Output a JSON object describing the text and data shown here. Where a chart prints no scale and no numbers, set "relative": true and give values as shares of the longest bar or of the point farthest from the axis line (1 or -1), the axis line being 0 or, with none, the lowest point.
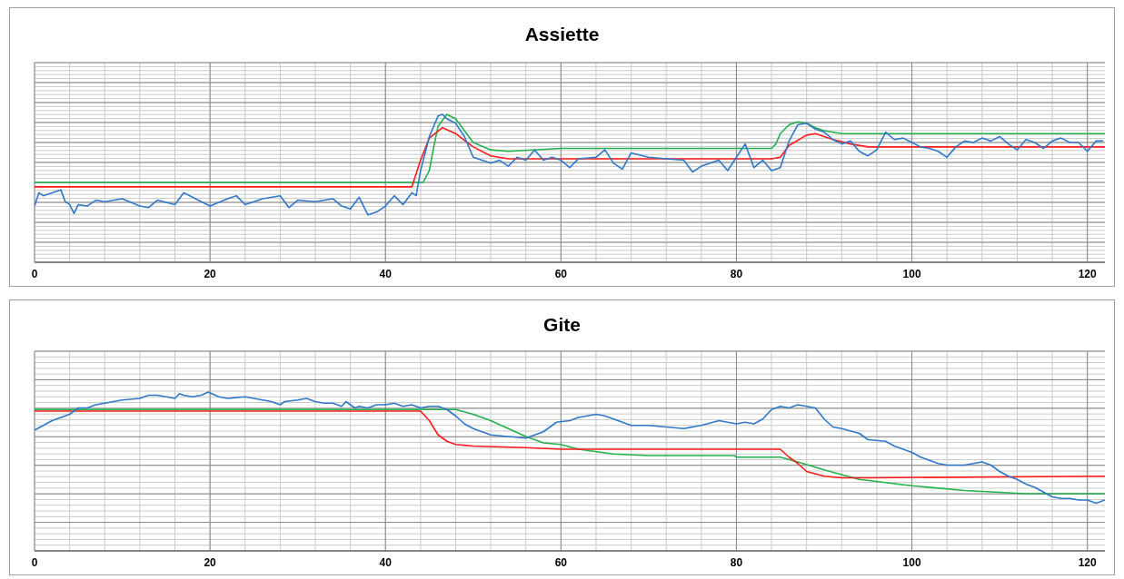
{
  "chart_data": [
    {
      "type": "line",
      "title": "Assiette",
      "relative": true,
      "xlim": [
        0,
        122
      ],
      "xticks": [
        0,
        20,
        40,
        60,
        80,
        100,
        120
      ],
      "grid": true,
      "series": [
        {
          "color": "#22b14c",
          "x": [
            0,
            44.3,
            45,
            45.5,
            46,
            47,
            48,
            49,
            50,
            52,
            54,
            60,
            84,
            84.5,
            85,
            86,
            87,
            88,
            89,
            90,
            92,
            122
          ],
          "values": [
            0.54,
            0.54,
            0.62,
            0.78,
            0.92,
            1.0,
            0.97,
            0.89,
            0.81,
            0.76,
            0.75,
            0.77,
            0.77,
            0.8,
            0.87,
            0.93,
            0.95,
            0.94,
            0.91,
            0.89,
            0.87,
            0.87
          ]
        },
        {
          "color": "#ff1a1a",
          "x": [
            0,
            43,
            44,
            45,
            46.5,
            48,
            50,
            52,
            54,
            60,
            84,
            85,
            86,
            88,
            89,
            91,
            93,
            95,
            122
          ],
          "values": [
            0.51,
            0.51,
            0.69,
            0.84,
            0.91,
            0.87,
            0.78,
            0.72,
            0.7,
            0.7,
            0.7,
            0.71,
            0.79,
            0.86,
            0.87,
            0.83,
            0.8,
            0.78,
            0.78
          ]
        },
        {
          "color": "#2f78c8",
          "x": [
            0,
            0.5,
            1,
            2,
            3,
            3.5,
            4,
            4.5,
            5,
            6,
            7,
            8,
            10,
            12,
            13,
            14,
            16,
            17,
            18,
            19,
            20,
            22,
            23,
            24,
            26,
            28,
            29,
            30,
            32,
            34,
            35,
            36,
            37,
            38,
            39,
            40,
            41,
            42,
            43,
            43.5,
            44,
            45,
            46,
            46.5,
            47,
            48,
            49,
            50,
            51,
            52,
            53,
            54,
            55,
            56,
            57,
            58,
            59,
            60,
            61,
            62,
            64,
            65,
            66,
            67,
            68,
            70,
            72,
            74,
            75,
            76,
            78,
            79,
            80,
            81,
            82,
            83,
            84,
            85,
            86,
            87,
            88,
            89,
            90,
            91,
            92,
            93,
            94,
            95,
            96,
            97,
            98,
            99,
            100,
            101,
            102,
            103,
            104,
            105,
            106,
            107,
            108,
            109,
            110,
            111,
            112,
            113,
            114,
            115,
            116,
            117,
            118,
            119,
            120,
            121,
            121.8
          ],
          "values": [
            0.38,
            0.47,
            0.45,
            0.47,
            0.49,
            0.41,
            0.39,
            0.33,
            0.39,
            0.38,
            0.42,
            0.41,
            0.43,
            0.38,
            0.37,
            0.42,
            0.39,
            0.47,
            0.44,
            0.41,
            0.38,
            0.43,
            0.45,
            0.39,
            0.43,
            0.45,
            0.37,
            0.42,
            0.41,
            0.43,
            0.38,
            0.36,
            0.44,
            0.32,
            0.34,
            0.38,
            0.45,
            0.39,
            0.47,
            0.45,
            0.62,
            0.85,
            0.99,
            1.0,
            0.97,
            0.94,
            0.85,
            0.71,
            0.69,
            0.67,
            0.69,
            0.65,
            0.71,
            0.69,
            0.76,
            0.69,
            0.71,
            0.69,
            0.64,
            0.7,
            0.71,
            0.76,
            0.67,
            0.63,
            0.74,
            0.71,
            0.7,
            0.69,
            0.61,
            0.65,
            0.69,
            0.62,
            0.71,
            0.8,
            0.64,
            0.69,
            0.62,
            0.64,
            0.82,
            0.93,
            0.94,
            0.9,
            0.88,
            0.83,
            0.8,
            0.82,
            0.75,
            0.72,
            0.76,
            0.88,
            0.83,
            0.84,
            0.81,
            0.78,
            0.77,
            0.75,
            0.71,
            0.78,
            0.82,
            0.81,
            0.84,
            0.82,
            0.85,
            0.8,
            0.76,
            0.83,
            0.81,
            0.77,
            0.82,
            0.84,
            0.81,
            0.81,
            0.75,
            0.82,
            0.82
          ]
        }
      ]
    },
    {
      "type": "line",
      "title": "Gite",
      "relative": true,
      "xlim": [
        0,
        122
      ],
      "xticks": [
        0,
        20,
        40,
        60,
        80,
        100,
        120
      ],
      "grid": true,
      "series": [
        {
          "color": "#22b14c",
          "x": [
            0,
            48,
            50,
            52,
            54,
            56,
            58,
            60,
            62,
            66,
            70,
            79.8,
            80,
            85,
            87,
            90,
            94,
            100,
            106,
            113,
            122
          ],
          "values": [
            0.89,
            0.89,
            0.86,
            0.82,
            0.77,
            0.72,
            0.68,
            0.67,
            0.64,
            0.61,
            0.6,
            0.6,
            0.59,
            0.59,
            0.56,
            0.51,
            0.45,
            0.41,
            0.38,
            0.36,
            0.36
          ]
        },
        {
          "color": "#ff1a1a",
          "x": [
            0,
            44,
            45,
            46,
            47,
            48,
            50,
            56,
            60,
            85,
            86,
            87,
            88,
            90,
            92,
            95,
            122
          ],
          "values": [
            0.88,
            0.88,
            0.82,
            0.73,
            0.69,
            0.67,
            0.66,
            0.65,
            0.64,
            0.64,
            0.59,
            0.55,
            0.5,
            0.47,
            0.46,
            0.46,
            0.47
          ]
        },
        {
          "color": "#2f78c8",
          "x": [
            0,
            1,
            2,
            3,
            4,
            5,
            6,
            7,
            8,
            10,
            12,
            13,
            14,
            15,
            16,
            16.5,
            17,
            18,
            19,
            19.8,
            21,
            22,
            24,
            25,
            26,
            27,
            28,
            28.5,
            30,
            31,
            32,
            33,
            34,
            35,
            35.5,
            36.5,
            37,
            38,
            39,
            40,
            41,
            42,
            43,
            44,
            45,
            46,
            47,
            48,
            49,
            50,
            51,
            52,
            54,
            56,
            57,
            58,
            59.5,
            61,
            62,
            64,
            65,
            66,
            67,
            68,
            70,
            72,
            74,
            76,
            78,
            80,
            81,
            82,
            83,
            84,
            85,
            86,
            87,
            88,
            89,
            90,
            91,
            92,
            94,
            95,
            97,
            98,
            100,
            101,
            102,
            103,
            104,
            106,
            107,
            108,
            109,
            110,
            111,
            112,
            113,
            114,
            115,
            116,
            117,
            118,
            119,
            120,
            121,
            122
          ],
          "values": [
            0.76,
            0.79,
            0.82,
            0.84,
            0.86,
            0.9,
            0.9,
            0.92,
            0.93,
            0.95,
            0.96,
            0.98,
            0.98,
            0.97,
            0.96,
            0.99,
            0.98,
            0.97,
            0.98,
            1.0,
            0.97,
            0.96,
            0.97,
            0.96,
            0.95,
            0.94,
            0.92,
            0.94,
            0.95,
            0.96,
            0.94,
            0.93,
            0.93,
            0.91,
            0.94,
            0.9,
            0.91,
            0.9,
            0.92,
            0.92,
            0.93,
            0.91,
            0.92,
            0.9,
            0.91,
            0.91,
            0.89,
            0.85,
            0.8,
            0.77,
            0.75,
            0.73,
            0.72,
            0.71,
            0.73,
            0.75,
            0.81,
            0.82,
            0.84,
            0.86,
            0.85,
            0.83,
            0.81,
            0.79,
            0.79,
            0.78,
            0.77,
            0.79,
            0.82,
            0.8,
            0.81,
            0.8,
            0.83,
            0.89,
            0.91,
            0.9,
            0.92,
            0.91,
            0.9,
            0.83,
            0.78,
            0.77,
            0.74,
            0.7,
            0.69,
            0.66,
            0.62,
            0.59,
            0.57,
            0.55,
            0.54,
            0.54,
            0.55,
            0.56,
            0.54,
            0.5,
            0.47,
            0.45,
            0.42,
            0.4,
            0.37,
            0.34,
            0.33,
            0.33,
            0.32,
            0.32,
            0.3,
            0.32
          ]
        }
      ]
    }
  ]
}
